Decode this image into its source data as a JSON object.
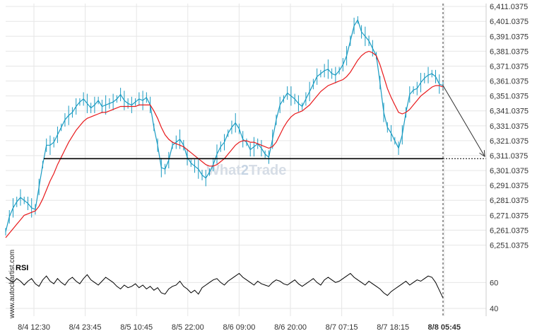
{
  "chart_data": {
    "type": "line",
    "y_ticks": [
      "6,411.0375",
      "6,401.0375",
      "6,391.0375",
      "6,381.0375",
      "6,371.0375",
      "6,361.0375",
      "6,351.0375",
      "6,341.0375",
      "6,331.0375",
      "6,321.0375",
      "6,311.0375",
      "6,301.0375",
      "6,291.0375",
      "6,281.0375",
      "6,271.0375",
      "6,261.0375",
      "6,251.0375"
    ],
    "ylim": [
      6247.0,
      6413.0
    ],
    "x_ticks": [
      "8/4 12:30",
      "8/4 23:45",
      "8/5 10:45",
      "8/5 22:00",
      "8/6 09:00",
      "8/6 20:00",
      "8/7 07:15",
      "8/7 18:15",
      "8/8 05:45"
    ],
    "price": [
      6260,
      6270,
      6276,
      6280,
      6283,
      6281,
      6279,
      6276,
      6275,
      6290,
      6305,
      6318,
      6318,
      6320,
      6325,
      6330,
      6335,
      6338,
      6340,
      6344,
      6347,
      6349,
      6346,
      6343,
      6345,
      6348,
      6344,
      6345,
      6346,
      6347,
      6349,
      6352,
      6348,
      6346,
      6345,
      6347,
      6349,
      6348,
      6350,
      6345,
      6330,
      6318,
      6303,
      6302,
      6308,
      6318,
      6320,
      6322,
      6318,
      6310,
      6306,
      6304,
      6302,
      6298,
      6296,
      6300,
      6305,
      6312,
      6317,
      6320,
      6326,
      6330,
      6333,
      6329,
      6322,
      6320,
      6315,
      6317,
      6319,
      6316,
      6312,
      6310,
      6322,
      6335,
      6345,
      6349,
      6353,
      6351,
      6349,
      6346,
      6344,
      6349,
      6354,
      6359,
      6364,
      6366,
      6368,
      6369,
      6366,
      6365,
      6368,
      6372,
      6378,
      6388,
      6398,
      6402,
      6394,
      6391,
      6388,
      6383,
      6378,
      6360,
      6340,
      6330,
      6326,
      6321,
      6316,
      6325,
      6340,
      6352,
      6355,
      6356,
      6360,
      6363,
      6365,
      6366,
      6364,
      6359,
      6358
    ],
    "moving_average": [
      6256,
      6259,
      6262,
      6265,
      6268,
      6271,
      6272,
      6273,
      6274,
      6277,
      6282,
      6288,
      6294,
      6299,
      6305,
      6310,
      6315,
      6320,
      6324,
      6328,
      6331,
      6334,
      6336,
      6337,
      6338,
      6339,
      6340,
      6340,
      6341,
      6342,
      6343,
      6344,
      6344,
      6344,
      6344,
      6344,
      6345,
      6345,
      6345,
      6345,
      6341,
      6336,
      6330,
      6325,
      6322,
      6320,
      6319,
      6318,
      6317,
      6315,
      6313,
      6311,
      6309,
      6307,
      6305,
      6304,
      6304,
      6305,
      6307,
      6309,
      6312,
      6315,
      6318,
      6320,
      6321,
      6321,
      6320,
      6320,
      6319,
      6318,
      6317,
      6316,
      6317,
      6320,
      6325,
      6330,
      6334,
      6337,
      6339,
      6340,
      6341,
      6343,
      6345,
      6348,
      6351,
      6354,
      6356,
      6358,
      6359,
      6360,
      6361,
      6362,
      6364,
      6367,
      6371,
      6375,
      6378,
      6380,
      6381,
      6380,
      6378,
      6372,
      6364,
      6356,
      6350,
      6345,
      6340,
      6339,
      6340,
      6342,
      6345,
      6348,
      6351,
      6353,
      6355,
      6357,
      6358,
      6358,
      6357
    ],
    "support_level": 6309.0,
    "projection_target": 6310.5,
    "rsi": {
      "label": "RSI",
      "ticks": [
        60,
        40
      ],
      "ylim": [
        34,
        76
      ],
      "values": [
        64,
        62,
        60,
        63,
        61,
        58,
        61,
        63,
        59,
        57,
        62,
        65,
        61,
        59,
        63,
        60,
        58,
        62,
        64,
        61,
        59,
        63,
        66,
        62,
        60,
        58,
        61,
        64,
        62,
        60,
        57,
        55,
        58,
        56,
        57,
        59,
        56,
        58,
        55,
        57,
        54,
        56,
        52,
        51,
        55,
        57,
        58,
        61,
        57,
        55,
        52,
        54,
        51,
        56,
        58,
        60,
        62,
        63,
        60,
        58,
        61,
        63,
        65,
        67,
        64,
        62,
        60,
        58,
        61,
        59,
        58,
        57,
        60,
        62,
        61,
        59,
        58,
        60,
        62,
        59,
        57,
        59,
        61,
        63,
        60,
        58,
        62,
        64,
        62,
        60,
        61,
        63,
        65,
        67,
        64,
        62,
        60,
        58,
        61,
        59,
        57,
        55,
        52,
        50,
        53,
        55,
        57,
        59,
        61,
        58,
        60,
        62,
        61,
        63,
        65,
        64,
        60,
        54,
        48
      ]
    }
  },
  "watermark": {
    "part1": "What",
    "part2": "2",
    "part3": "Trade"
  },
  "side_brand": "www.autochartist.com",
  "colors": {
    "price_line": "#1a9bc2",
    "moving_average": "#e8191b",
    "support_line": "#000000",
    "axis": "#333333",
    "grid": "#e6e6e6"
  }
}
